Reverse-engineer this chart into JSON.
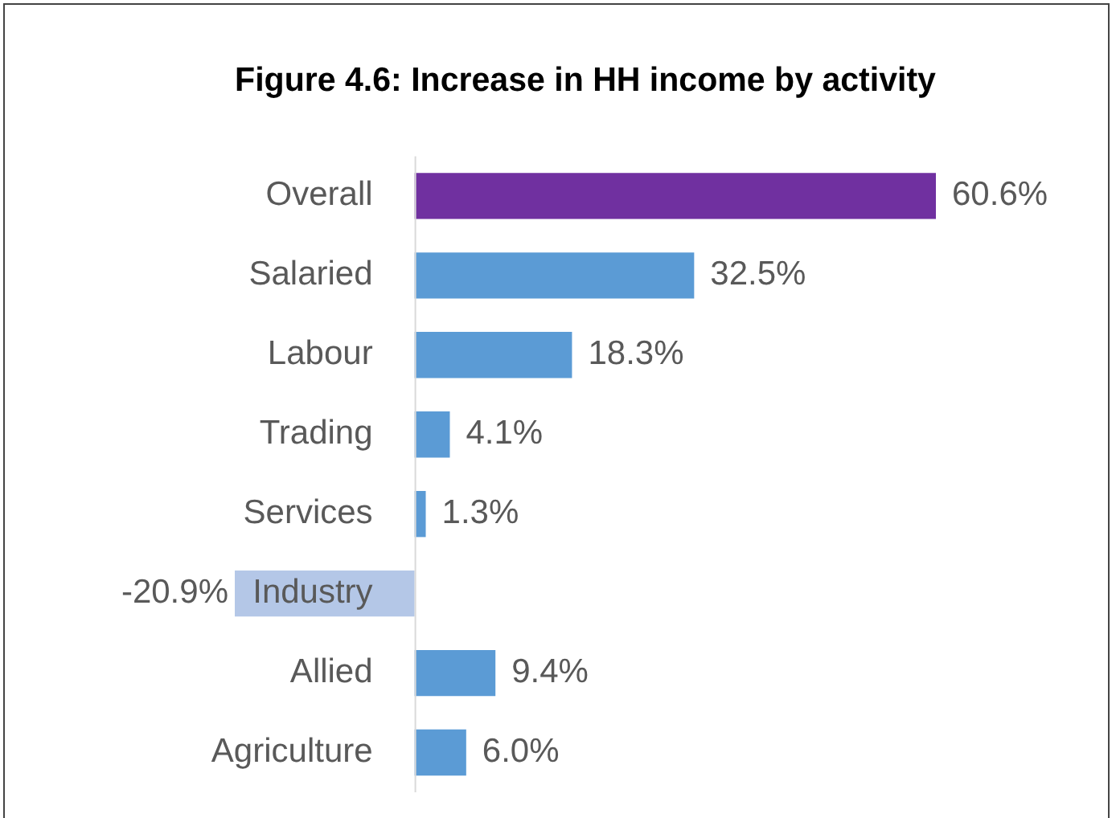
{
  "chart_data": {
    "type": "bar",
    "title": "Figure 4.6: Increase in HH income by activity",
    "orientation": "horizontal",
    "categories": [
      "Overall",
      "Salaried",
      "Labour",
      "Trading",
      "Services",
      "Industry",
      "Allied",
      "Agriculture"
    ],
    "values": [
      60.6,
      32.5,
      18.3,
      4.1,
      1.3,
      -20.9,
      9.4,
      6.0
    ],
    "colors": [
      "#7030a0",
      "#5b9bd5",
      "#5b9bd5",
      "#5b9bd5",
      "#5b9bd5",
      "#b4c7e7",
      "#5b9bd5",
      "#5b9bd5"
    ],
    "value_labels": [
      "60.6%",
      "32.5%",
      "18.3%",
      "4.1%",
      "1.3%",
      "-20.9%",
      "9.4%",
      "6.0%"
    ],
    "legend": false
  }
}
